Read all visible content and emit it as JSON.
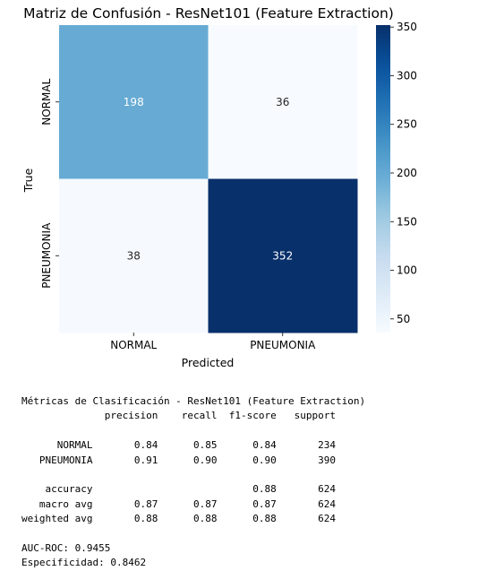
{
  "chart_data": {
    "type": "heatmap",
    "title": "Matriz de Confusión - ResNet101 (Feature Extraction)",
    "xlabel": "Predicted",
    "ylabel": "True",
    "x_categories": [
      "NORMAL",
      "PNEUMONIA"
    ],
    "y_categories": [
      "NORMAL",
      "PNEUMONIA"
    ],
    "values": [
      [
        198,
        36
      ],
      [
        38,
        352
      ]
    ],
    "colormap": "Blues",
    "color_range": [
      36,
      352
    ],
    "colorbar_ticks": [
      50,
      100,
      150,
      200,
      250,
      300,
      350
    ]
  },
  "report": {
    "lines": [
      "Métricas de Clasificación - ResNet101 (Feature Extraction)",
      "              precision    recall  f1-score   support",
      "",
      "      NORMAL       0.84      0.85      0.84       234",
      "   PNEUMONIA       0.91      0.90      0.90       390",
      "",
      "    accuracy                           0.88       624",
      "   macro avg       0.87      0.87      0.87       624",
      "weighted avg       0.88      0.88      0.88       624",
      "",
      "AUC-ROC: 0.9455",
      "Especificidad: 0.8462"
    ]
  }
}
